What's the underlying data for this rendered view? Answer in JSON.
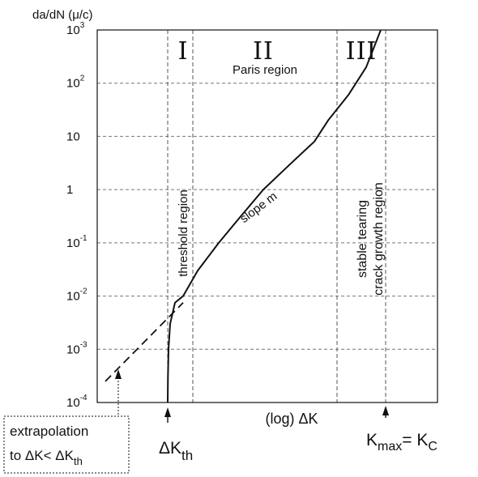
{
  "chart_data": {
    "type": "line",
    "title": "",
    "ylabel": "da/dN (μ/c)",
    "xlabel": "(log) ΔK",
    "y_scale": "log",
    "ylim": [
      0.0001,
      1000
    ],
    "y_ticks": [
      {
        "value": 1000,
        "base": "10",
        "exp": "3"
      },
      {
        "value": 100,
        "base": "10",
        "exp": "2"
      },
      {
        "value": 10,
        "base": "10",
        "exp": ""
      },
      {
        "value": 1,
        "base": "1",
        "exp": ""
      },
      {
        "value": 0.1,
        "base": "10",
        "exp": "-1"
      },
      {
        "value": 0.01,
        "base": "10",
        "exp": "-2"
      },
      {
        "value": 0.001,
        "base": "10",
        "exp": "-3"
      },
      {
        "value": 0.0001,
        "base": "10",
        "exp": "-4"
      }
    ],
    "x_axis_ticks": false,
    "grid": "horizontal dashed at decades",
    "regions": [
      {
        "numeral": "I",
        "name": "threshold region"
      },
      {
        "numeral": "II",
        "name": "Paris region",
        "annotation": "slope m"
      },
      {
        "numeral": "III",
        "name": "stable tearing crack growth region"
      }
    ],
    "extrapolation_note": "extrapolation to ΔK< ΔKth",
    "markers": {
      "threshold": {
        "main": "ΔK",
        "sub": "th"
      },
      "critical": {
        "k1": "K",
        "sub1": "max",
        "eq": "= K",
        "sub2": "C"
      }
    },
    "series": [
      {
        "style": "solid",
        "y": [
          0.0001,
          0.0003,
          0.001,
          0.003,
          0.0075,
          0.01,
          0.03,
          0.1,
          0.3,
          1,
          3,
          8,
          20,
          60,
          200,
          1000
        ]
      },
      {
        "style": "dashed",
        "y": [
          0.00025,
          0.0003,
          0.001,
          0.003,
          0.0075
        ]
      }
    ]
  }
}
